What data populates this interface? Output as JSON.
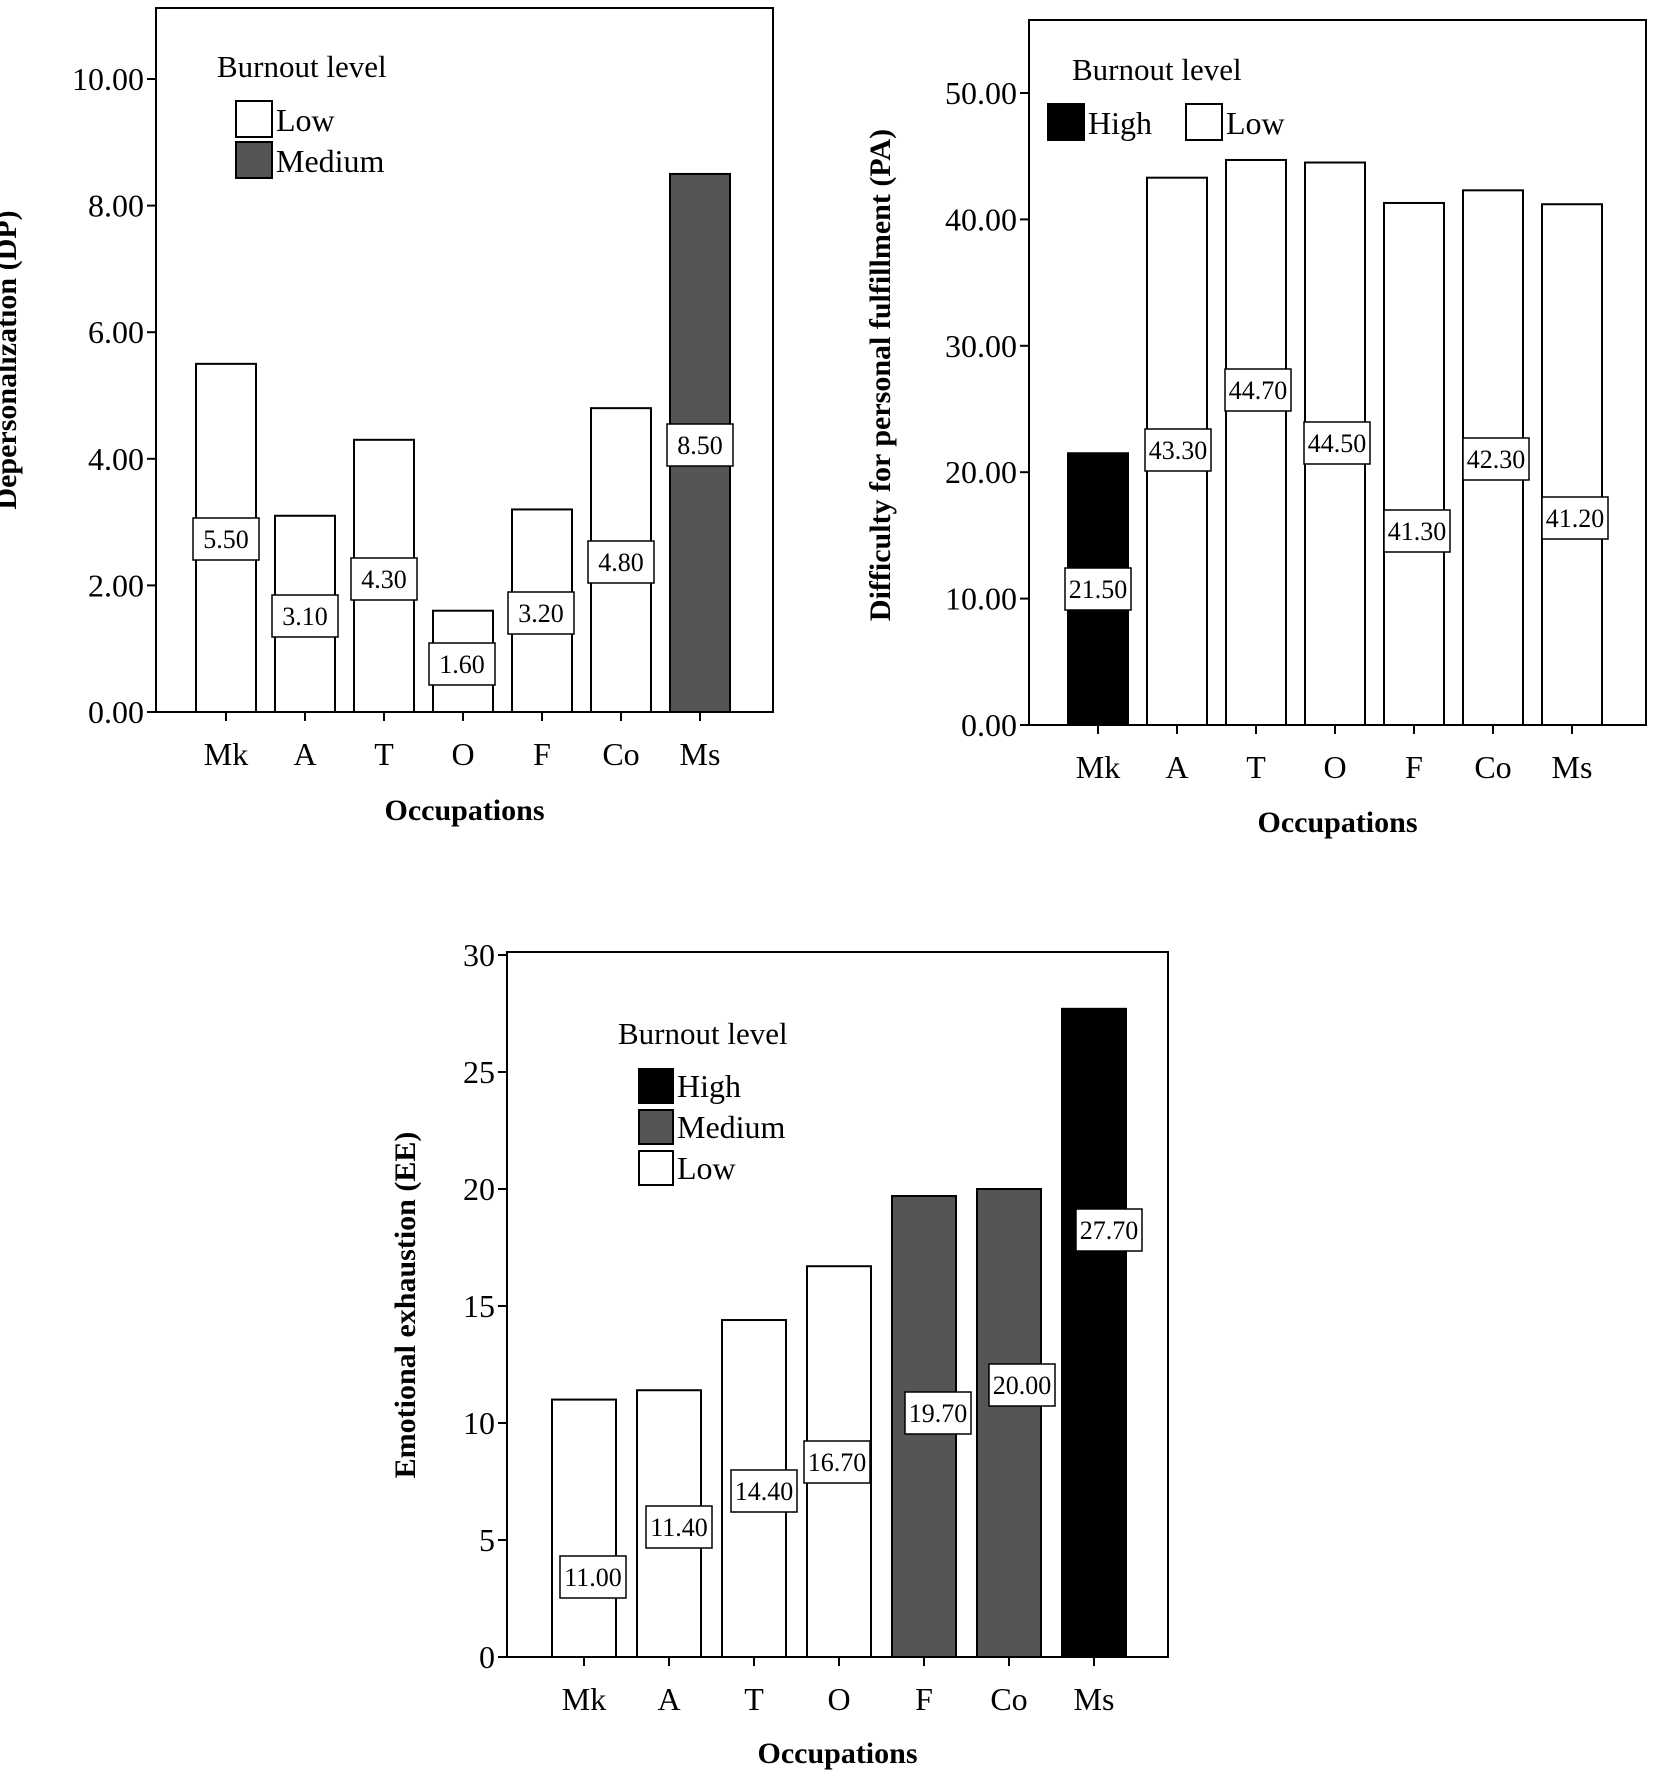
{
  "colors": {
    "High": "#000000",
    "Medium": "#555555",
    "Low": "#ffffff",
    "stroke": "#000000"
  },
  "chart_data": [
    {
      "type": "bar",
      "ylabel": "Depersonalization (DP)",
      "xlabel": "Occupations",
      "ylim": [
        0,
        10
      ],
      "yticks": [
        "0.00",
        "2.00",
        "4.00",
        "6.00",
        "8.00",
        "10.00"
      ],
      "categories": [
        "Mk",
        "A",
        "T",
        "O",
        "F",
        "Co",
        "Ms"
      ],
      "values": [
        5.5,
        3.1,
        4.3,
        1.6,
        3.2,
        4.8,
        8.5
      ],
      "value_labels": [
        "5.50",
        "3.10",
        "4.30",
        "1.60",
        "3.20",
        "4.80",
        "8.50"
      ],
      "levels": [
        "Low",
        "Low",
        "Low",
        "Low",
        "Low",
        "Low",
        "Medium"
      ],
      "legend": {
        "title": "Burnout level",
        "entries": [
          "Low",
          "Medium"
        ],
        "placement": "top-left"
      }
    },
    {
      "type": "bar",
      "ylabel": "Difficulty for personal fulfillment  (PA)",
      "xlabel": "Occupations",
      "ylim": [
        0,
        50
      ],
      "yticks": [
        "0.00",
        "10.00",
        "20.00",
        "30.00",
        "40.00",
        "50.00"
      ],
      "categories": [
        "Mk",
        "A",
        "T",
        "O",
        "F",
        "Co",
        "Ms"
      ],
      "values": [
        21.5,
        43.3,
        44.7,
        44.5,
        41.3,
        42.3,
        41.2
      ],
      "value_labels": [
        "21.50",
        "43.30",
        "44.70",
        "44.50",
        "41.30",
        "42.30",
        "41.20"
      ],
      "levels": [
        "High",
        "Low",
        "Low",
        "Low",
        "Low",
        "Low",
        "Low"
      ],
      "legend": {
        "title": "Burnout level",
        "entries": [
          "High",
          "Low"
        ],
        "placement": "top-left"
      }
    },
    {
      "type": "bar",
      "ylabel": "Emotional exhaustion (EE)",
      "xlabel": "Occupations",
      "ylim": [
        0,
        30
      ],
      "yticks": [
        "0",
        "5",
        "10",
        "15",
        "20",
        "25",
        "30"
      ],
      "categories": [
        "Mk",
        "A",
        "T",
        "O",
        "F",
        "Co",
        "Ms"
      ],
      "values": [
        11.0,
        11.4,
        14.4,
        16.7,
        19.7,
        20.0,
        27.7
      ],
      "value_labels": [
        "11.00",
        "11.40",
        "14.40",
        "16.70",
        "19.70",
        "20.00",
        "27.70"
      ],
      "levels": [
        "Low",
        "Low",
        "Low",
        "Low",
        "Medium",
        "Medium",
        "High"
      ],
      "legend": {
        "title": "Burnout level",
        "entries": [
          "High",
          "Medium",
          "Low"
        ],
        "placement": "top-left"
      }
    }
  ]
}
